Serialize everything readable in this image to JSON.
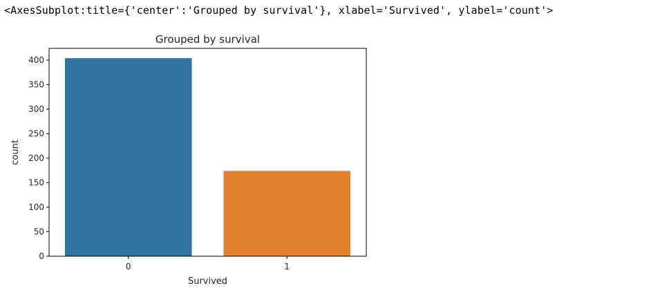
{
  "output": {
    "repr": "<AxesSubplot:title={'center':'Grouped by survival'}, xlabel='Survived', ylabel='count'>"
  },
  "chart_data": {
    "type": "bar",
    "title": "Grouped by survival",
    "xlabel": "Survived",
    "ylabel": "count",
    "categories": [
      "0",
      "1"
    ],
    "values": [
      404,
      174
    ],
    "colors": [
      "#3274a1",
      "#e1812c"
    ],
    "ylim": [
      0,
      424
    ],
    "yticks": [
      0,
      50,
      100,
      150,
      200,
      250,
      300,
      350,
      400
    ],
    "grid": false
  }
}
